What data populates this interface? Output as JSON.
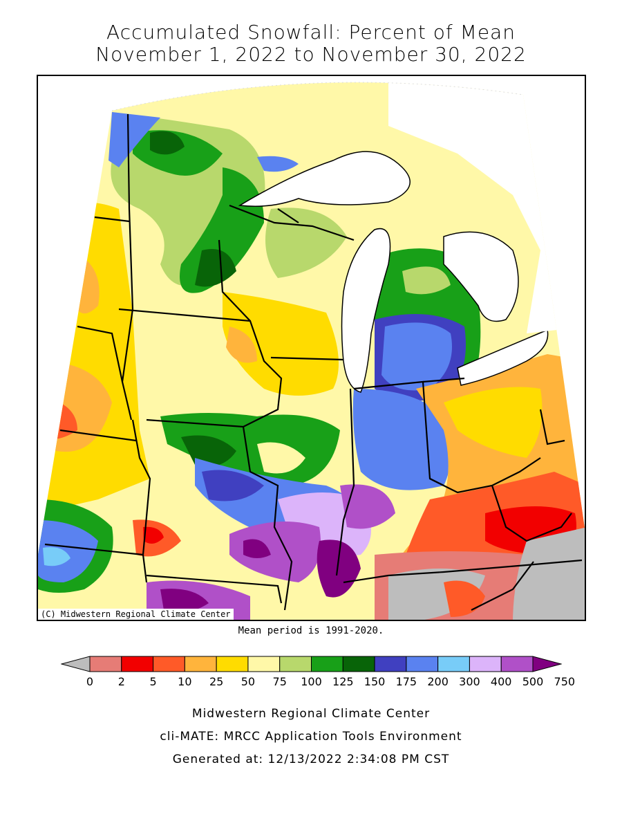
{
  "title": {
    "line1": "Accumulated Snowfall: Percent of Mean",
    "line2": "November 1, 2022 to November 30, 2022"
  },
  "map": {
    "copyright": "(C) Midwestern Regional Climate Center",
    "mean_note": "Mean period is 1991-2020."
  },
  "legend": {
    "ticks": [
      "0",
      "2",
      "5",
      "10",
      "25",
      "50",
      "75",
      "100",
      "125",
      "150",
      "175",
      "200",
      "300",
      "400",
      "500",
      "750"
    ],
    "colors": [
      "#bdbdbd",
      "#e67c76",
      "#f20000",
      "#ff5a28",
      "#ffb43c",
      "#ffdc00",
      "#fff8a8",
      "#b8d86c",
      "#18a018",
      "#086408",
      "#4040c0",
      "#5a82f0",
      "#78ccf8",
      "#dcb4fa",
      "#b050c8",
      "#800080"
    ]
  },
  "footer": {
    "line1": "Midwestern Regional Climate Center",
    "line2": "cli-MATE: MRCC Application Tools Environment",
    "line3": "Generated at: 12/13/2022 2:34:08 PM CST"
  }
}
